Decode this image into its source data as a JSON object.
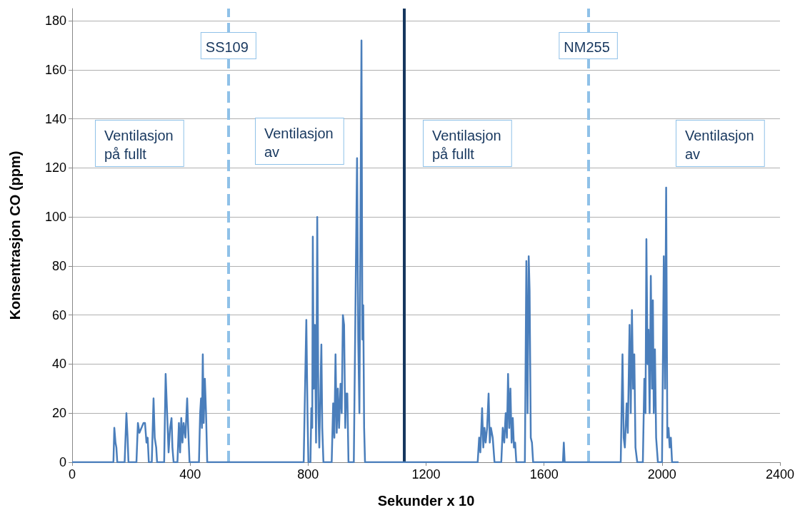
{
  "chart_data": {
    "type": "line",
    "xlabel": "Sekunder x 10",
    "ylabel": "Konsentrasjon CO (ppm)",
    "x": [
      0,
      140,
      143,
      147,
      150,
      153,
      178,
      184,
      188,
      191,
      218,
      223,
      228,
      235,
      242,
      247,
      252,
      256,
      260,
      270,
      276,
      280,
      285,
      288,
      312,
      317,
      322,
      327,
      332,
      337,
      340,
      344,
      357,
      362,
      366,
      370,
      374,
      378,
      384,
      390,
      394,
      398,
      430,
      434,
      437,
      440,
      443,
      446,
      450,
      454,
      458,
      785,
      794,
      798,
      801,
      808,
      811,
      814,
      816,
      819,
      823,
      827,
      831,
      835,
      838,
      845,
      848,
      852,
      880,
      885,
      889,
      893,
      897,
      901,
      905,
      910,
      914,
      918,
      922,
      926,
      929,
      933,
      937,
      955,
      966,
      970,
      974,
      981,
      984,
      987,
      990,
      993,
      1375,
      1380,
      1384,
      1390,
      1394,
      1398,
      1402,
      1407,
      1412,
      1416,
      1420,
      1426,
      1432,
      1455,
      1460,
      1465,
      1470,
      1474,
      1478,
      1482,
      1486,
      1490,
      1494,
      1498,
      1502,
      1506,
      1535,
      1540,
      1544,
      1548,
      1551,
      1555,
      1559,
      1563,
      1664,
      1667,
      1670,
      1860,
      1866,
      1870,
      1874,
      1880,
      1884,
      1890,
      1894,
      1898,
      1902,
      1906,
      1910,
      1916,
      1935,
      1940,
      1944,
      1947,
      1951,
      1954,
      1958,
      1962,
      1966,
      1969,
      1972,
      1976,
      1980,
      1986,
      2000,
      2006,
      2010,
      2014,
      2018,
      2022,
      2026,
      2030,
      2034,
      2056
    ],
    "series": [
      {
        "color": "#4a7ebb",
        "values": [
          0,
          0,
          14,
          8,
          6,
          0,
          0,
          20,
          10,
          0,
          0,
          16,
          12,
          14,
          16,
          16,
          8,
          10,
          0,
          0,
          26,
          10,
          6,
          0,
          0,
          36,
          20,
          4,
          14,
          18,
          6,
          0,
          0,
          16,
          4,
          18,
          8,
          16,
          10,
          26,
          12,
          0,
          0,
          20,
          26,
          14,
          44,
          16,
          34,
          20,
          0,
          0,
          58,
          20,
          0,
          0,
          22,
          14,
          92,
          30,
          56,
          8,
          100,
          20,
          6,
          48,
          14,
          0,
          0,
          24,
          10,
          44,
          12,
          30,
          14,
          32,
          20,
          60,
          56,
          14,
          28,
          28,
          0,
          0,
          124,
          50,
          20,
          172,
          50,
          64,
          14,
          0,
          0,
          10,
          4,
          22,
          6,
          14,
          8,
          14,
          28,
          8,
          14,
          10,
          0,
          0,
          14,
          8,
          20,
          10,
          36,
          14,
          30,
          8,
          18,
          6,
          8,
          0,
          0,
          82,
          20,
          84,
          70,
          10,
          8,
          0,
          0,
          8,
          0,
          0,
          44,
          10,
          6,
          24,
          12,
          56,
          20,
          62,
          30,
          44,
          6,
          0,
          0,
          34,
          20,
          91,
          40,
          54,
          20,
          76,
          30,
          66,
          20,
          46,
          10,
          0,
          0,
          84,
          30,
          112,
          10,
          14,
          6,
          10,
          0,
          0
        ]
      }
    ],
    "xlim": [
      0,
      2400
    ],
    "xticks": [
      0,
      400,
      800,
      1200,
      1600,
      2000,
      2400
    ],
    "ylim": [
      0,
      185
    ],
    "yticks": [
      0,
      20,
      40,
      60,
      80,
      100,
      120,
      140,
      160,
      180
    ],
    "grid": "y",
    "marker": "none",
    "line_style": "solid",
    "ref_lines": [
      {
        "axis": "x",
        "value": 530,
        "label": "SS109",
        "color": "#8fc1e8",
        "line_style": "dashed"
      },
      {
        "axis": "x",
        "value": 1750,
        "label": "NM255",
        "color": "#8fc1e8",
        "line_style": "dashed"
      },
      {
        "axis": "x",
        "value": 1126,
        "color": "#17375e",
        "line_style": "solid"
      }
    ],
    "annotations": [
      "Ventilasjon\npå fullt",
      "Ventilasjon\nav",
      "Ventilasjon\npå fullt",
      "Ventilasjon\nav"
    ]
  }
}
